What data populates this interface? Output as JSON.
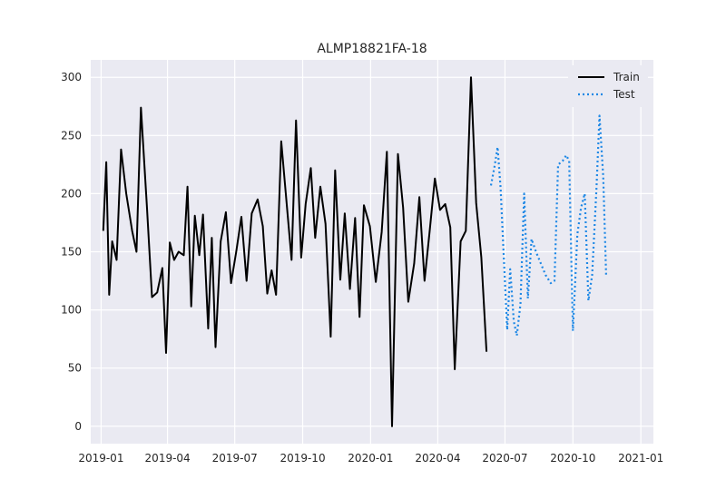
{
  "chart_data": {
    "type": "line",
    "title": "ALMP18821FA-18",
    "xlabel": "",
    "ylabel": "",
    "grid": true,
    "legend": "top-right",
    "ylim": [
      -15,
      315
    ],
    "xlim": [
      "2018-12-18",
      "2021-01-18"
    ],
    "yticks": [
      0,
      50,
      100,
      150,
      200,
      250,
      300
    ],
    "xticks": [
      "2019-01",
      "2019-04",
      "2019-07",
      "2019-10",
      "2020-01",
      "2020-04",
      "2020-07",
      "2020-10",
      "2021-01"
    ],
    "colors": {
      "train": "#000000",
      "test": "#1e88e5",
      "background": "#eaeaf2",
      "grid": "#ffffff"
    },
    "series": [
      {
        "name": "Train",
        "style": "solid",
        "points": [
          [
            "2019-01-04",
            168
          ],
          [
            "2019-01-08",
            227
          ],
          [
            "2019-01-12",
            113
          ],
          [
            "2019-01-16",
            159
          ],
          [
            "2019-01-22",
            143
          ],
          [
            "2019-01-28",
            238
          ],
          [
            "2019-02-04",
            200
          ],
          [
            "2019-02-12",
            168
          ],
          [
            "2019-02-18",
            150
          ],
          [
            "2019-02-24",
            274
          ],
          [
            "2019-03-04",
            190
          ],
          [
            "2019-03-11",
            111
          ],
          [
            "2019-03-18",
            115
          ],
          [
            "2019-03-25",
            136
          ],
          [
            "2019-03-30",
            63
          ],
          [
            "2019-04-04",
            158
          ],
          [
            "2019-04-10",
            143
          ],
          [
            "2019-04-16",
            150
          ],
          [
            "2019-04-23",
            147
          ],
          [
            "2019-04-28",
            206
          ],
          [
            "2019-05-03",
            103
          ],
          [
            "2019-05-08",
            181
          ],
          [
            "2019-05-14",
            147
          ],
          [
            "2019-05-19",
            182
          ],
          [
            "2019-05-26",
            84
          ],
          [
            "2019-05-31",
            162
          ],
          [
            "2019-06-05",
            68
          ],
          [
            "2019-06-12",
            159
          ],
          [
            "2019-06-19",
            184
          ],
          [
            "2019-06-26",
            123
          ],
          [
            "2019-07-03",
            150
          ],
          [
            "2019-07-10",
            180
          ],
          [
            "2019-07-17",
            125
          ],
          [
            "2019-07-24",
            183
          ],
          [
            "2019-08-01",
            195
          ],
          [
            "2019-08-08",
            172
          ],
          [
            "2019-08-14",
            114
          ],
          [
            "2019-08-20",
            134
          ],
          [
            "2019-08-26",
            113
          ],
          [
            "2019-09-02",
            245
          ],
          [
            "2019-09-16",
            143
          ],
          [
            "2019-09-22",
            263
          ],
          [
            "2019-09-29",
            145
          ],
          [
            "2019-10-05",
            191
          ],
          [
            "2019-10-12",
            222
          ],
          [
            "2019-10-18",
            162
          ],
          [
            "2019-10-25",
            206
          ],
          [
            "2019-11-01",
            174
          ],
          [
            "2019-11-08",
            77
          ],
          [
            "2019-11-14",
            220
          ],
          [
            "2019-11-21",
            126
          ],
          [
            "2019-11-27",
            183
          ],
          [
            "2019-12-04",
            118
          ],
          [
            "2019-12-11",
            179
          ],
          [
            "2019-12-17",
            94
          ],
          [
            "2019-12-23",
            190
          ],
          [
            "2019-12-31",
            172
          ],
          [
            "2020-01-08",
            124
          ],
          [
            "2020-01-16",
            167
          ],
          [
            "2020-01-23",
            236
          ],
          [
            "2020-01-30",
            0
          ],
          [
            "2020-02-07",
            234
          ],
          [
            "2020-02-14",
            188
          ],
          [
            "2020-02-21",
            107
          ],
          [
            "2020-02-29",
            140
          ],
          [
            "2020-03-07",
            197
          ],
          [
            "2020-03-14",
            125
          ],
          [
            "2020-03-21",
            168
          ],
          [
            "2020-03-28",
            213
          ],
          [
            "2020-04-04",
            186
          ],
          [
            "2020-04-11",
            191
          ],
          [
            "2020-04-18",
            171
          ],
          [
            "2020-04-24",
            49
          ],
          [
            "2020-05-02",
            159
          ],
          [
            "2020-05-09",
            168
          ],
          [
            "2020-05-16",
            300
          ],
          [
            "2020-05-23",
            192
          ],
          [
            "2020-05-30",
            145
          ],
          [
            "2020-06-06",
            64
          ]
        ]
      },
      {
        "name": "Test",
        "style": "dotted",
        "points": [
          [
            "2020-06-12",
            207
          ],
          [
            "2020-06-17",
            224
          ],
          [
            "2020-06-21",
            240
          ],
          [
            "2020-06-25",
            205
          ],
          [
            "2020-06-30",
            138
          ],
          [
            "2020-07-04",
            83
          ],
          [
            "2020-07-08",
            135
          ],
          [
            "2020-07-13",
            90
          ],
          [
            "2020-07-17",
            78
          ],
          [
            "2020-07-22",
            105
          ],
          [
            "2020-07-27",
            200
          ],
          [
            "2020-08-01",
            110
          ],
          [
            "2020-08-06",
            161
          ],
          [
            "2020-08-12",
            150
          ],
          [
            "2020-08-25",
            130
          ],
          [
            "2020-09-01",
            123
          ],
          [
            "2020-09-06",
            125
          ],
          [
            "2020-09-11",
            225
          ],
          [
            "2020-09-17",
            228
          ],
          [
            "2020-09-22",
            233
          ],
          [
            "2020-09-26",
            228
          ],
          [
            "2020-10-01",
            82
          ],
          [
            "2020-10-07",
            165
          ],
          [
            "2020-10-12",
            188
          ],
          [
            "2020-10-17",
            200
          ],
          [
            "2020-10-22",
            108
          ],
          [
            "2020-10-27",
            130
          ],
          [
            "2020-11-02",
            205
          ],
          [
            "2020-11-06",
            267
          ],
          [
            "2020-11-11",
            215
          ],
          [
            "2020-11-15",
            130
          ]
        ]
      }
    ]
  }
}
